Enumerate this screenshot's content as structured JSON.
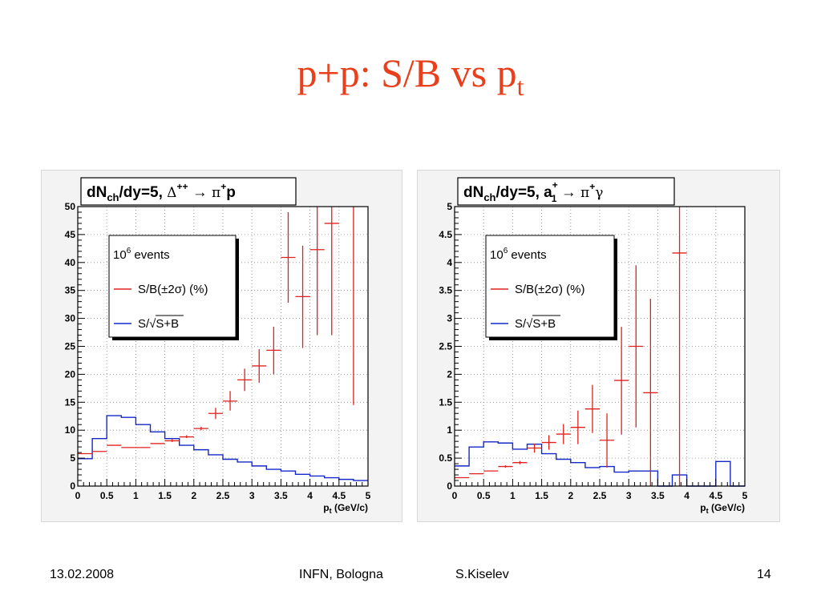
{
  "slide": {
    "title_main": "p+p: S/B vs p",
    "title_sub": "t"
  },
  "footer": {
    "date": "13.02.2008",
    "venue": "INFN, Bologna",
    "author": "S.Kiselev",
    "page": "14"
  },
  "colors": {
    "title": "#e8401c",
    "sb": "#e0201c",
    "signif": "#1428c8"
  },
  "chart_data": [
    {
      "type": "histogram",
      "title": "dN_ch/dy=5, Δ⁺⁺ → π⁺p",
      "title_parts": [
        "dN",
        "ch",
        "/dy=5, ",
        "Δ",
        "++",
        " → ",
        "π",
        "+",
        "p"
      ],
      "xlabel": "p (GeV/c)",
      "xlabel_parts": [
        "p",
        "t",
        " (GeV/c)"
      ],
      "xlim": [
        0,
        5
      ],
      "ylim": [
        0,
        50
      ],
      "xticks": [
        "0",
        "0.5",
        "1",
        "1.5",
        "2",
        "2.5",
        "3",
        "3.5",
        "4",
        "4.5",
        "5"
      ],
      "yticks": [
        "0",
        "5",
        "10",
        "15",
        "20",
        "25",
        "30",
        "35",
        "40",
        "45",
        "50"
      ],
      "grid": true,
      "legend": {
        "header": "10",
        "header_sup": "6",
        "header_rest": " events",
        "entries": [
          "S/B(±2σ) (%)",
          "S/√S+B"
        ],
        "placement": "upper-left"
      },
      "series": [
        {
          "name": "S/B(±2σ) (%)",
          "kind": "errorbar",
          "points": [
            {
              "x": 0.125,
              "y": 5.8,
              "lo": 5.8,
              "hi": 5.8
            },
            {
              "x": 0.375,
              "y": 6.2,
              "lo": 6.2,
              "hi": 6.2
            },
            {
              "x": 0.625,
              "y": 7.3,
              "lo": 7.3,
              "hi": 7.3
            },
            {
              "x": 0.875,
              "y": 6.9,
              "lo": 6.9,
              "hi": 6.9
            },
            {
              "x": 1.125,
              "y": 6.9,
              "lo": 6.9,
              "hi": 6.9
            },
            {
              "x": 1.375,
              "y": 7.6,
              "lo": 7.6,
              "hi": 7.6
            },
            {
              "x": 1.625,
              "y": 8.1,
              "lo": 7.9,
              "hi": 8.4
            },
            {
              "x": 1.875,
              "y": 8.8,
              "lo": 8.6,
              "hi": 9.1
            },
            {
              "x": 2.125,
              "y": 10.3,
              "lo": 10.0,
              "hi": 10.6
            },
            {
              "x": 2.375,
              "y": 13.0,
              "lo": 12.0,
              "hi": 14.0
            },
            {
              "x": 2.625,
              "y": 15.2,
              "lo": 13.5,
              "hi": 17.0
            },
            {
              "x": 2.875,
              "y": 19.0,
              "lo": 17.0,
              "hi": 21.0
            },
            {
              "x": 3.125,
              "y": 21.5,
              "lo": 18.5,
              "hi": 24.5
            },
            {
              "x": 3.375,
              "y": 24.3,
              "lo": 20.0,
              "hi": 28.5
            },
            {
              "x": 3.625,
              "y": 40.9,
              "lo": 32.8,
              "hi": 49.0
            },
            {
              "x": 3.875,
              "y": 33.9,
              "lo": 24.7,
              "hi": 43.0
            },
            {
              "x": 4.125,
              "y": 42.3,
              "lo": 27.0,
              "hi": 50.0
            },
            {
              "x": 4.375,
              "y": 47.0,
              "lo": 27.0,
              "hi": 50.0
            },
            {
              "x": 4.75,
              "y": 50.0,
              "lo": 14.5,
              "hi": 50.0
            }
          ]
        },
        {
          "name": "S/√S+B",
          "kind": "step",
          "bins": [
            0,
            0.25,
            0.5,
            0.75,
            1.0,
            1.25,
            1.5,
            1.75,
            2.0,
            2.25,
            2.5,
            2.75,
            3.0,
            3.25,
            3.5,
            3.75,
            4.0,
            4.25,
            4.5,
            4.75,
            5.0
          ],
          "values": [
            4.9,
            8.5,
            12.6,
            12.3,
            11.0,
            9.7,
            8.5,
            7.3,
            6.5,
            5.6,
            4.8,
            4.3,
            3.6,
            3.0,
            2.7,
            2.1,
            1.8,
            1.5,
            1.2,
            1.0
          ]
        }
      ]
    },
    {
      "type": "histogram",
      "title": "dN_ch/dy=5, a1+ → π⁺γ",
      "title_parts": [
        "dN",
        "ch",
        "/dy=5, ",
        "a",
        "+",
        "1",
        " → ",
        "π",
        "+",
        "γ"
      ],
      "xlabel": "p (GeV/c)",
      "xlabel_parts": [
        "p",
        "t",
        " (GeV/c)"
      ],
      "xlim": [
        0,
        5
      ],
      "ylim": [
        0,
        5
      ],
      "xticks": [
        "0",
        "0.5",
        "1",
        "1.5",
        "2",
        "2.5",
        "3",
        "3.5",
        "4",
        "4.5",
        "5"
      ],
      "yticks": [
        "0",
        "0.5",
        "1",
        "1.5",
        "2",
        "2.5",
        "3",
        "3.5",
        "4",
        "4.5",
        "5"
      ],
      "grid": true,
      "legend": {
        "header": "10",
        "header_sup": "6",
        "header_rest": " events",
        "entries": [
          "S/B(±2σ) (%)",
          "S/√S+B"
        ],
        "placement": "upper-left"
      },
      "series": [
        {
          "name": "S/B(±2σ) (%)",
          "kind": "errorbar",
          "points": [
            {
              "x": 0.125,
              "y": 0.15,
              "lo": 0.15,
              "hi": 0.15
            },
            {
              "x": 0.375,
              "y": 0.22,
              "lo": 0.22,
              "hi": 0.22
            },
            {
              "x": 0.625,
              "y": 0.27,
              "lo": 0.27,
              "hi": 0.27
            },
            {
              "x": 0.875,
              "y": 0.35,
              "lo": 0.33,
              "hi": 0.37
            },
            {
              "x": 1.125,
              "y": 0.42,
              "lo": 0.39,
              "hi": 0.45
            },
            {
              "x": 1.375,
              "y": 0.68,
              "lo": 0.6,
              "hi": 0.76
            },
            {
              "x": 1.625,
              "y": 0.78,
              "lo": 0.65,
              "hi": 0.91
            },
            {
              "x": 1.875,
              "y": 0.93,
              "lo": 0.75,
              "hi": 1.11
            },
            {
              "x": 2.125,
              "y": 1.05,
              "lo": 0.75,
              "hi": 1.35
            },
            {
              "x": 2.375,
              "y": 1.38,
              "lo": 0.95,
              "hi": 1.81
            },
            {
              "x": 2.625,
              "y": 0.82,
              "lo": 0.33,
              "hi": 1.3
            },
            {
              "x": 2.875,
              "y": 1.89,
              "lo": 0.92,
              "hi": 2.85
            },
            {
              "x": 3.125,
              "y": 2.5,
              "lo": 1.05,
              "hi": 3.95
            },
            {
              "x": 3.375,
              "y": 1.67,
              "lo": 0.0,
              "hi": 3.35
            },
            {
              "x": 3.875,
              "y": 4.17,
              "lo": 0.0,
              "hi": 5.0
            }
          ]
        },
        {
          "name": "S/√S+B",
          "kind": "step",
          "bins": [
            0,
            0.25,
            0.5,
            0.75,
            1.0,
            1.25,
            1.5,
            1.75,
            2.0,
            2.25,
            2.5,
            2.75,
            3.0,
            3.25,
            3.5,
            3.75,
            4.0,
            4.25,
            4.5,
            4.75,
            5.0
          ],
          "values": [
            0.36,
            0.7,
            0.79,
            0.77,
            0.66,
            0.75,
            0.58,
            0.48,
            0.42,
            0.33,
            0.35,
            0.25,
            0.27,
            0.27,
            0.0,
            0.2,
            0.0,
            0.0,
            0.44,
            0.0
          ]
        }
      ]
    }
  ]
}
